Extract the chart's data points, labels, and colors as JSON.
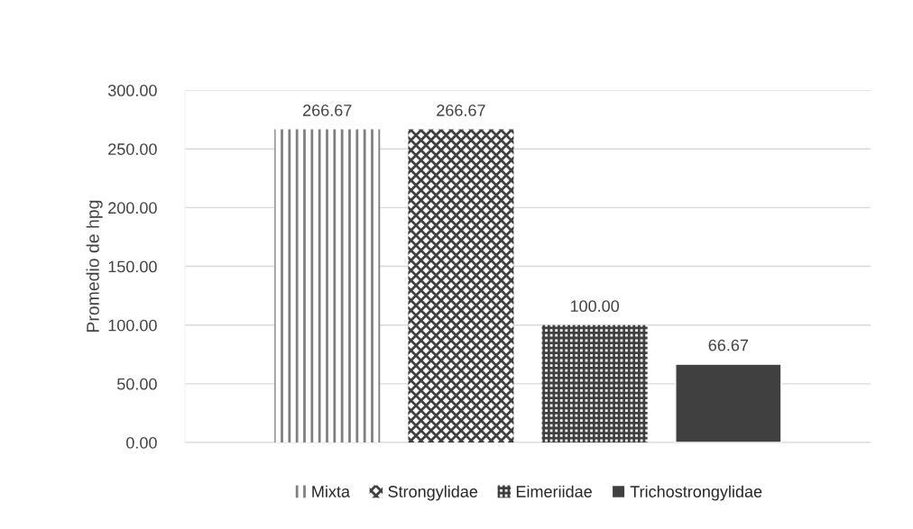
{
  "chart_data": {
    "type": "bar",
    "ylabel": "Promedio de hpg",
    "categories": [
      null
    ],
    "series": [
      {
        "name": "Mixta",
        "color": "#7f7f7f",
        "values": [
          266.67
        ],
        "value_labels": [
          "266.67"
        ]
      },
      {
        "name": "Strongylidae",
        "color": "#404040",
        "values": [
          266.67
        ],
        "value_labels": [
          "266.67"
        ]
      },
      {
        "name": "Eimeriidae",
        "color": "#404040",
        "values": [
          100
        ],
        "value_labels": [
          "100.00"
        ]
      },
      {
        "name": "Trichostrongylidae",
        "color": "#404040",
        "values": [
          66.67
        ],
        "value_labels": [
          "66.67"
        ]
      }
    ],
    "ylim": [
      0,
      300
    ],
    "yticks": [
      {
        "value": 0,
        "label": "0.00"
      },
      {
        "value": 50,
        "label": "50.00"
      },
      {
        "value": 100,
        "label": "100.00"
      },
      {
        "value": 150,
        "label": "150.00"
      },
      {
        "value": 200,
        "label": "200.00"
      },
      {
        "value": 250,
        "label": "250.00"
      },
      {
        "value": 300,
        "label": "300.00"
      }
    ],
    "grid": "y",
    "legend": "bottom"
  }
}
